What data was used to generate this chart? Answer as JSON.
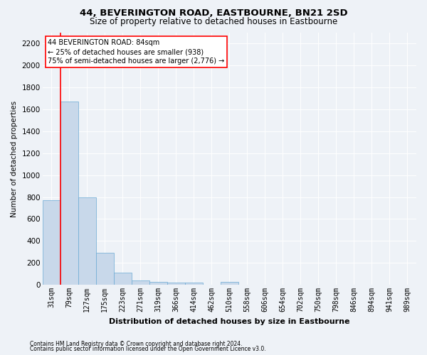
{
  "title": "44, BEVERINGTON ROAD, EASTBOURNE, BN21 2SD",
  "subtitle": "Size of property relative to detached houses in Eastbourne",
  "xlabel": "Distribution of detached houses by size in Eastbourne",
  "ylabel": "Number of detached properties",
  "footnote1": "Contains HM Land Registry data © Crown copyright and database right 2024.",
  "footnote2": "Contains public sector information licensed under the Open Government Licence v3.0.",
  "categories": [
    "31sqm",
    "79sqm",
    "127sqm",
    "175sqm",
    "223sqm",
    "271sqm",
    "319sqm",
    "366sqm",
    "414sqm",
    "462sqm",
    "510sqm",
    "558sqm",
    "606sqm",
    "654sqm",
    "702sqm",
    "750sqm",
    "798sqm",
    "846sqm",
    "894sqm",
    "941sqm",
    "989sqm"
  ],
  "values": [
    770,
    1670,
    800,
    295,
    110,
    38,
    28,
    20,
    20,
    0,
    28,
    0,
    0,
    0,
    0,
    0,
    0,
    0,
    0,
    0,
    0
  ],
  "bar_color": "#c8d8ea",
  "bar_edge_color": "#6aaad4",
  "vline_color": "red",
  "vline_linewidth": 1.2,
  "vline_x_index": 1,
  "annotation_box_text": "44 BEVERINGTON ROAD: 84sqm\n← 25% of detached houses are smaller (938)\n75% of semi-detached houses are larger (2,776) →",
  "box_edge_color": "red",
  "ylim": [
    0,
    2300
  ],
  "yticks": [
    0,
    200,
    400,
    600,
    800,
    1000,
    1200,
    1400,
    1600,
    1800,
    2000,
    2200
  ],
  "background_color": "#eef2f7",
  "plot_bg_color": "#eef2f7",
  "grid_color": "#ffffff",
  "title_fontsize": 9.5,
  "subtitle_fontsize": 8.5,
  "xlabel_fontsize": 8,
  "ylabel_fontsize": 7.5,
  "tick_fontsize": 7,
  "ytick_fontsize": 7.5,
  "footnote_fontsize": 5.5,
  "annot_fontsize": 7
}
